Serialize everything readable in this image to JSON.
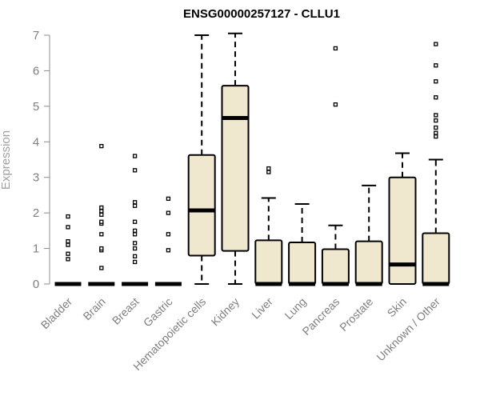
{
  "chart_data": {
    "type": "boxplot",
    "title": "ENSG00000257127 - CLLU1",
    "xlabel": "",
    "ylabel": "Expression",
    "ylim": [
      0,
      7
    ],
    "yticks": [
      0,
      1,
      2,
      3,
      4,
      5,
      6,
      7
    ],
    "grid": false,
    "legend": "none",
    "colors": {
      "box_fill": "#efe8cf",
      "box_stroke": "#000000",
      "axis": "#8c8c8c",
      "tick_text": "#7f7f7f"
    },
    "categories": [
      "Bladder",
      "Brain",
      "Breast",
      "Gastric",
      "Hematopoietic cells",
      "Kidney",
      "Liver",
      "Lung",
      "Pancreas",
      "Prostate",
      "Skin",
      "Unknown / Other"
    ],
    "boxes": [
      {
        "category": "Bladder",
        "q1": 0,
        "median": 0,
        "q3": 0,
        "whisker_low": 0,
        "whisker_high": 0,
        "outliers": [
          0.7,
          0.85,
          1.1,
          1.2,
          1.6,
          1.9
        ]
      },
      {
        "category": "Brain",
        "q1": 0,
        "median": 0,
        "q3": 0,
        "whisker_low": 0,
        "whisker_high": 0,
        "outliers": [
          0.45,
          0.95,
          1.0,
          1.4,
          1.7,
          1.75,
          1.95,
          2.05,
          2.15,
          3.88
        ]
      },
      {
        "category": "Breast",
        "q1": 0,
        "median": 0,
        "q3": 0,
        "whisker_low": 0,
        "whisker_high": 0,
        "outliers": [
          0.62,
          0.78,
          1.0,
          1.15,
          1.4,
          1.5,
          1.75,
          2.2,
          2.3,
          3.2,
          3.6
        ]
      },
      {
        "category": "Gastric",
        "q1": 0,
        "median": 0,
        "q3": 0,
        "whisker_low": 0,
        "whisker_high": 0,
        "outliers": [
          0.95,
          1.4,
          2.0,
          2.4
        ]
      },
      {
        "category": "Hematopoietic cells",
        "q1": 0.8,
        "median": 2.07,
        "q3": 3.63,
        "whisker_low": 0,
        "whisker_high": 7.0,
        "outliers": []
      },
      {
        "category": "Kidney",
        "q1": 0.93,
        "median": 4.67,
        "q3": 5.58,
        "whisker_low": 0,
        "whisker_high": 7.05,
        "outliers": []
      },
      {
        "category": "Liver",
        "q1": 0,
        "median": 0,
        "q3": 1.23,
        "whisker_low": 0,
        "whisker_high": 2.42,
        "outliers": [
          3.15,
          3.25
        ]
      },
      {
        "category": "Lung",
        "q1": 0,
        "median": 0,
        "q3": 1.17,
        "whisker_low": 0,
        "whisker_high": 2.25,
        "outliers": []
      },
      {
        "category": "Pancreas",
        "q1": 0,
        "median": 0,
        "q3": 0.98,
        "whisker_low": 0,
        "whisker_high": 1.65,
        "outliers": [
          5.05,
          6.63
        ]
      },
      {
        "category": "Prostate",
        "q1": 0,
        "median": 0,
        "q3": 1.2,
        "whisker_low": 0,
        "whisker_high": 2.77,
        "outliers": []
      },
      {
        "category": "Skin",
        "q1": 0,
        "median": 0.55,
        "q3": 3.0,
        "whisker_low": 0,
        "whisker_high": 3.68,
        "outliers": []
      },
      {
        "category": "Unknown / Other",
        "q1": 0,
        "median": 0,
        "q3": 1.43,
        "whisker_low": 0,
        "whisker_high": 3.5,
        "outliers": [
          4.15,
          4.25,
          4.4,
          4.6,
          4.75,
          5.25,
          5.7,
          6.15,
          6.75
        ]
      }
    ]
  }
}
